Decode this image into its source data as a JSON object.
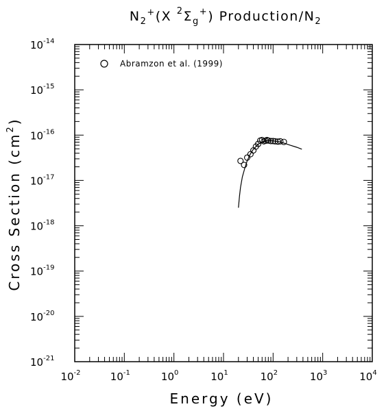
{
  "chart_data": {
    "type": "scatter",
    "title": {
      "base": "N",
      "sub1": "2",
      "sup1": "+",
      "mid": "(X ",
      "sup2": "2",
      "sigma": "Σ",
      "sub2": "g",
      "sup3": "+",
      "tail": ") Production/N",
      "sub3": "2"
    },
    "xlabel": "Energy (eV)",
    "ylabel": {
      "base": "Cross Section (cm",
      "sup": "2",
      "tail": ")"
    },
    "x_scale": "log",
    "y_scale": "log",
    "xlim": [
      0.01,
      10000
    ],
    "ylim": [
      1e-21,
      1e-14
    ],
    "x_tick_exponents": [
      "-2",
      "-1",
      "0",
      "1",
      "2",
      "3",
      "4"
    ],
    "y_tick_exponents": [
      "-14",
      "-15",
      "-16",
      "-17",
      "-18",
      "-19",
      "-20",
      "-21"
    ],
    "tick_base": "10",
    "grid": false,
    "legend_position": "top-left",
    "series": [
      {
        "name": "Abramzon et al. (1999)",
        "marker": "open-circle",
        "points": [
          [
            22,
            2.7e-17
          ],
          [
            26,
            2.2e-17
          ],
          [
            30,
            3.2e-17
          ],
          [
            35,
            3.8e-17
          ],
          [
            40,
            4.6e-17
          ],
          [
            45,
            5.6e-17
          ],
          [
            50,
            6.4e-17
          ],
          [
            55,
            7.6e-17
          ],
          [
            60,
            7.8e-17
          ],
          [
            65,
            7.3e-17
          ],
          [
            70,
            7.5e-17
          ],
          [
            75,
            7.8e-17
          ],
          [
            80,
            7.6e-17
          ],
          [
            90,
            7.4e-17
          ],
          [
            100,
            7.4e-17
          ],
          [
            110,
            7.3e-17
          ],
          [
            125,
            7.2e-17
          ],
          [
            140,
            7.3e-17
          ],
          [
            165,
            7.1e-17
          ]
        ]
      },
      {
        "marker": "line",
        "points": [
          [
            20,
            2.5e-18
          ],
          [
            21,
            4.5e-18
          ],
          [
            22,
            7e-18
          ],
          [
            24,
            1.2e-17
          ],
          [
            27,
            1.9e-17
          ],
          [
            30,
            2.7e-17
          ],
          [
            35,
            3.9e-17
          ],
          [
            40,
            4.9e-17
          ],
          [
            50,
            6.3e-17
          ],
          [
            60,
            7.1e-17
          ],
          [
            70,
            7.4e-17
          ],
          [
            80,
            7.6e-17
          ],
          [
            100,
            7.5e-17
          ],
          [
            130,
            7.2e-17
          ],
          [
            170,
            6.6e-17
          ],
          [
            220,
            6e-17
          ],
          [
            300,
            5.4e-17
          ],
          [
            380,
            4.9e-17
          ]
        ]
      }
    ]
  }
}
